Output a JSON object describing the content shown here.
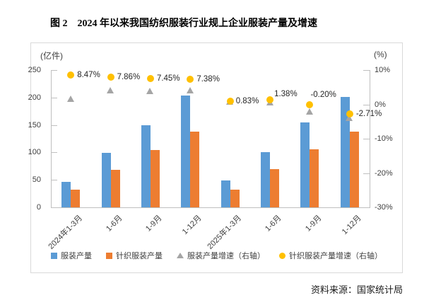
{
  "page": {
    "title": "图 2　2024 年以来我国纺织服装行业规上企业服装产量及增速",
    "source": "资料来源：国家统计局"
  },
  "chart_data": {
    "type": "combo",
    "subtype": "grouped-bar + scatter markers on secondary axis",
    "title": "图 2　2024 年以来我国纺织服装行业规上企业服装产量及增速",
    "categories": [
      "2024年1-3月",
      "1-6月",
      "1-9月",
      "1-12月",
      "2025年1-3月",
      "1-6月",
      "1-9月",
      "1-12月"
    ],
    "left_axis": {
      "unit_label": "(亿件)",
      "ticks": [
        "0",
        "50",
        "100",
        "150",
        "200",
        "250"
      ],
      "range": [
        0,
        250
      ]
    },
    "right_axis": {
      "unit_label": "(%)",
      "ticks": [
        "10%",
        "0%",
        "-10%",
        "-20%",
        "-30%"
      ],
      "range": [
        -30,
        10
      ]
    },
    "grid": false,
    "legend_position": "bottom",
    "series": [
      {
        "name": "服装产量",
        "type": "bar",
        "axis": "left",
        "marker": "square",
        "color": "#5B9BD5",
        "values": [
          47,
          99,
          150,
          204,
          49,
          100,
          154,
          201
        ]
      },
      {
        "name": "针织服装产量",
        "type": "bar",
        "axis": "left",
        "marker": "square",
        "color": "#ED7D31",
        "values": [
          32,
          68,
          104,
          138,
          32,
          69,
          106,
          138
        ]
      },
      {
        "name": "服装产量增速（右轴）",
        "type": "scatter",
        "axis": "right",
        "marker": "triangle",
        "color": "#A5A5A5",
        "labels_visible": false,
        "values": [
          1.6,
          4.1,
          3.9,
          4.1,
          0.8,
          0.7,
          -2.0,
          -4.0
        ]
      },
      {
        "name": "针织服装产量增速（右轴）",
        "type": "scatter",
        "axis": "right",
        "marker": "circle",
        "color": "#FFC000",
        "labels_visible": true,
        "values": [
          8.47,
          7.86,
          7.45,
          7.38,
          0.83,
          1.38,
          -0.2,
          -2.71
        ],
        "data_labels": [
          "8.47%",
          "7.86%",
          "7.45%",
          "7.38%",
          "0.83%",
          "1.38%",
          "-0.20%",
          "-2.71%"
        ]
      }
    ]
  }
}
